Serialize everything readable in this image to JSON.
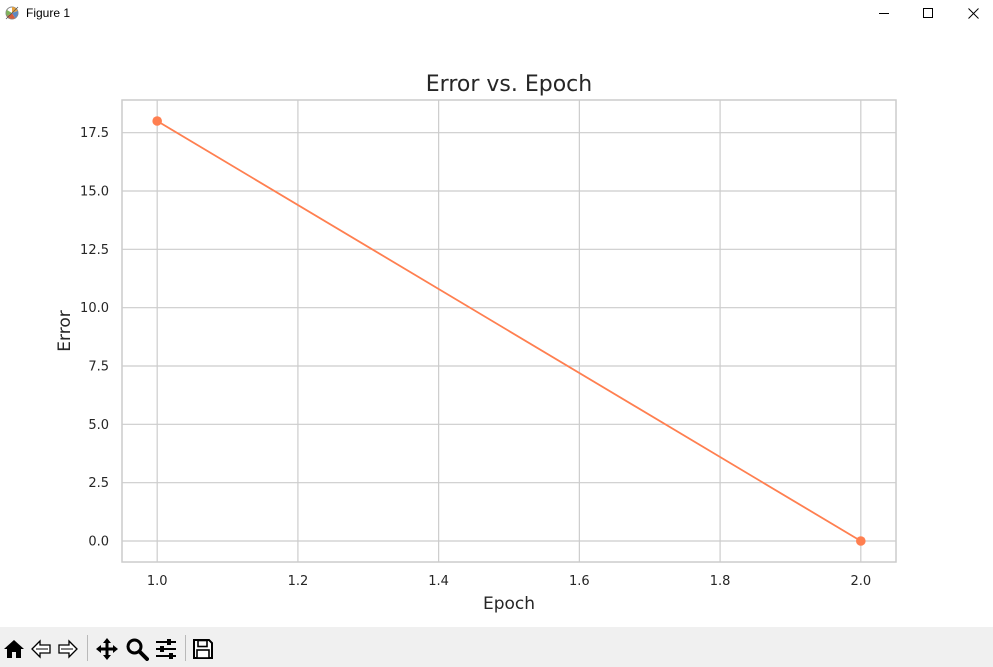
{
  "window": {
    "title": "Figure 1"
  },
  "icons": {
    "app": "matplotlib-figure-icon",
    "minimize": "minimize-icon",
    "maximize": "maximize-icon",
    "close": "close-icon"
  },
  "toolbar": {
    "tools": [
      {
        "name": "home-icon"
      },
      {
        "name": "back-arrow-icon"
      },
      {
        "name": "forward-arrow-icon"
      },
      {
        "name": "pan-icon"
      },
      {
        "name": "zoom-icon"
      },
      {
        "name": "configure-subplots-icon"
      },
      {
        "name": "save-icon"
      }
    ]
  },
  "chart_data": {
    "type": "line",
    "title": "Error vs. Epoch",
    "xlabel": "Epoch",
    "ylabel": "Error",
    "x": [
      1.0,
      2.0
    ],
    "series": [
      {
        "values": [
          18.0,
          0.0
        ],
        "color": "#ff7f50",
        "marker": "circle"
      }
    ],
    "xlim": [
      0.95,
      2.05
    ],
    "ylim": [
      -0.9,
      18.9
    ],
    "xticks": [
      1.0,
      1.2,
      1.4,
      1.6,
      1.8,
      2.0
    ],
    "xtick_labels": [
      "1.0",
      "1.2",
      "1.4",
      "1.6",
      "1.8",
      "2.0"
    ],
    "yticks": [
      0.0,
      2.5,
      5.0,
      7.5,
      10.0,
      12.5,
      15.0,
      17.5
    ],
    "ytick_labels": [
      "0.0",
      "2.5",
      "5.0",
      "7.5",
      "10.0",
      "12.5",
      "15.0",
      "17.5"
    ],
    "grid": true,
    "colors": {
      "grid": "#cccccc",
      "spine": "#cccccc",
      "text": "#262626"
    }
  }
}
